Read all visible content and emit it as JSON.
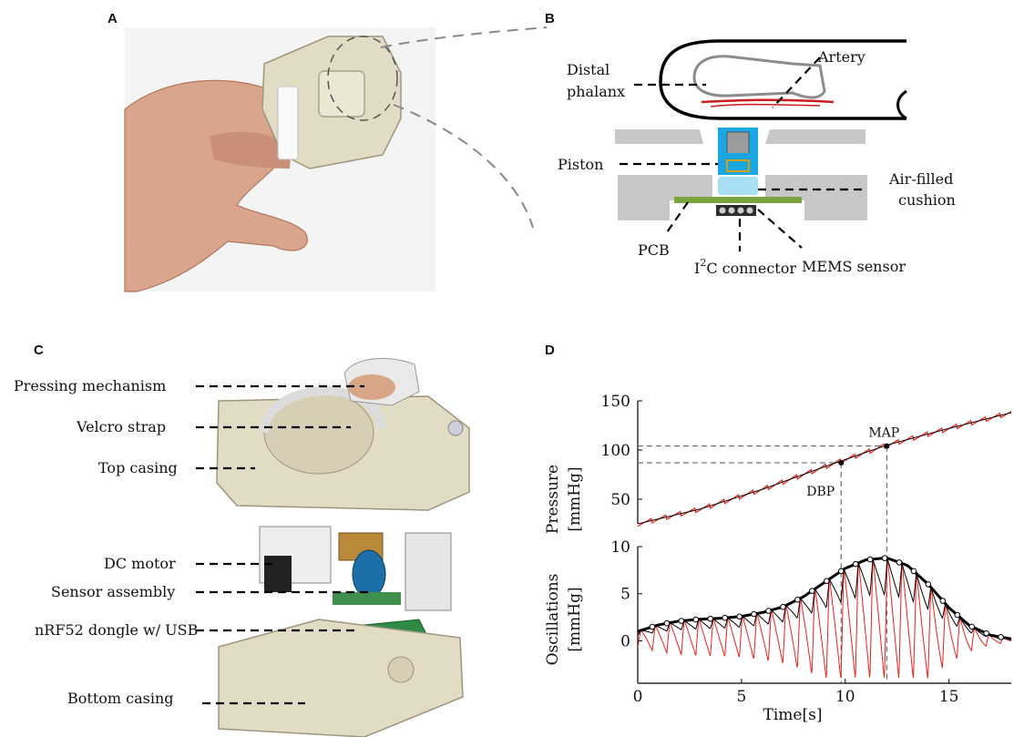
{
  "panels": {
    "a": {
      "letter": "A"
    },
    "b": {
      "letter": "B",
      "labels": {
        "distal_1": "Distal",
        "distal_2": "phalanx",
        "artery": "Artery",
        "piston": "Piston",
        "cushion_1": "Air-filled",
        "cushion_2": "cushion",
        "pcb": "PCB",
        "i2c_pre": "I",
        "i2c_sup": "2",
        "i2c_post": "C connector",
        "mems": "MEMS sensor"
      }
    },
    "c": {
      "letter": "C",
      "labels": [
        "Pressing mechanism",
        "Velcro strap",
        "Top casing",
        "DC motor",
        "Sensor assembly",
        "nRF52 dongle w/ USB",
        "Bottom casing"
      ]
    },
    "d": {
      "letter": "D",
      "annotations": {
        "map": "MAP",
        "dbp": "DBP"
      }
    }
  },
  "colors": {
    "pressure_trace": "#e8231c",
    "envelope": "#000000",
    "gray_frame": "#c8c8c8",
    "blue_piston": "#1aa6e0",
    "light_cushion": "#a8dff2",
    "pcb_green": "#79a33c",
    "artery_red": "#cc1c1c"
  },
  "chart_data": [
    {
      "type": "line",
      "ylabel_1": "Pressure",
      "ylabel_2": "[mmHg]",
      "ylim": [
        25,
        150
      ],
      "yticks": [
        50,
        100,
        150
      ],
      "xlim": [
        0,
        18
      ],
      "series": [
        {
          "x": [
            0,
            3,
            6,
            9,
            12,
            15,
            18
          ],
          "y": [
            25,
            40,
            60,
            83,
            105,
            122,
            138
          ]
        }
      ],
      "markers": [
        {
          "label": "DBP",
          "x": 9.8,
          "y": 87
        },
        {
          "label": "MAP",
          "x": 12,
          "y": 104
        }
      ]
    },
    {
      "type": "line",
      "ylabel_1": "Oscillations",
      "ylabel_2": "[mmHg]",
      "xlabel": "Time[s]",
      "ylim": [
        -4.5,
        10
      ],
      "yticks": [
        0,
        5,
        10
      ],
      "xlim": [
        0,
        18
      ],
      "xticks": [
        0,
        5,
        10,
        15
      ],
      "envelope": {
        "x": [
          0,
          1,
          2,
          3,
          4,
          5,
          6,
          7,
          8,
          9,
          10,
          11,
          12,
          13,
          14,
          15,
          16,
          17,
          18
        ],
        "y": [
          1.0,
          1.7,
          2.1,
          2.3,
          2.4,
          2.6,
          3.0,
          3.6,
          4.7,
          6.2,
          7.7,
          8.6,
          8.8,
          8.0,
          6.0,
          3.5,
          1.6,
          0.6,
          0.2
        ]
      },
      "peaks_x": [
        0.7,
        1.4,
        2.1,
        2.8,
        3.5,
        4.2,
        4.9,
        5.6,
        6.3,
        7.0,
        7.7,
        8.4,
        9.1,
        9.8,
        10.5,
        11.2,
        11.9,
        12.6,
        13.3,
        14.0,
        14.7,
        15.4,
        16.1,
        16.8,
        17.5
      ]
    }
  ]
}
